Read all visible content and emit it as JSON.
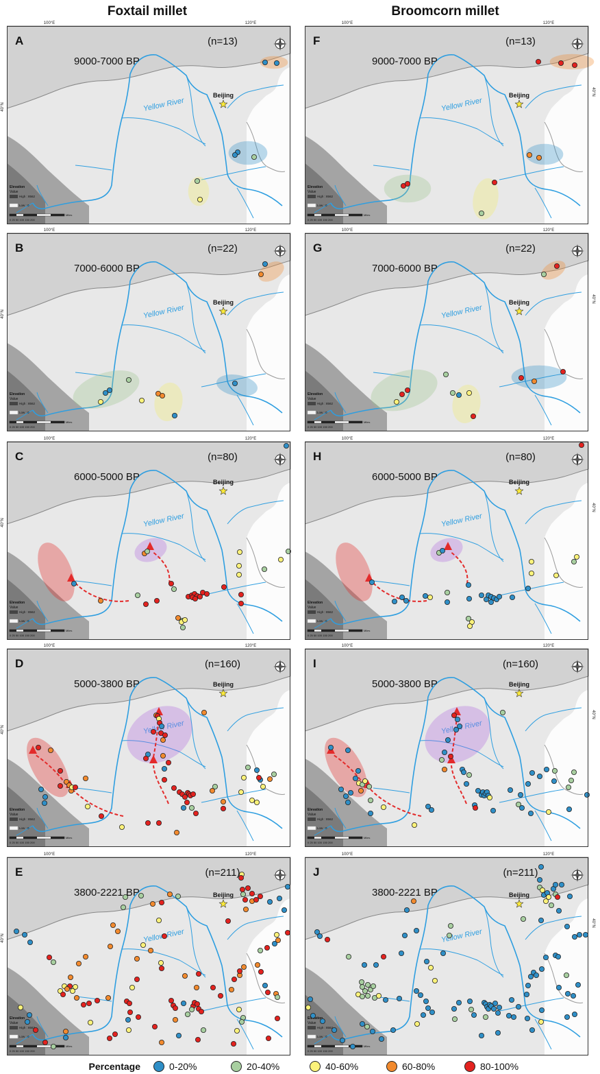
{
  "columns": [
    "Foxtail millet",
    "Broomcorn millet"
  ],
  "map_text": {
    "lon_100": "100°E",
    "lon_120": "120°E",
    "lat_40": "40°N",
    "beijing": "Beijing",
    "yellow_river": "Yellow River",
    "elevation_title": "Elevation",
    "elevation_value": "Value",
    "elevation_high": "High : 8562",
    "elevation_low": "Low : 0",
    "scale_ticks": "0  25 50   100   150   200",
    "scale_unit": "Miles"
  },
  "legend": {
    "title": "Percentage",
    "items": [
      {
        "label": "0-20%",
        "color": "#2f8fc7"
      },
      {
        "label": "20-40%",
        "color": "#a8cfa0"
      },
      {
        "label": "40-60%",
        "color": "#fbf27a"
      },
      {
        "label": "60-80%",
        "color": "#f28a2e"
      },
      {
        "label": "80-100%",
        "color": "#e3221f"
      }
    ]
  },
  "panels": [
    {
      "letter": "A",
      "period": "9000-7000 BP",
      "n": "(n=13)"
    },
    {
      "letter": "B",
      "period": "7000-6000 BP",
      "n": "(n=22)"
    },
    {
      "letter": "C",
      "period": "6000-5000 BP",
      "n": "(n=80)"
    },
    {
      "letter": "D",
      "period": "5000-3800 BP",
      "n": "(n=160)"
    },
    {
      "letter": "E",
      "period": "3800-2221 BP",
      "n": "(n=211)"
    },
    {
      "letter": "F",
      "period": "9000-7000 BP",
      "n": "(n=13)"
    },
    {
      "letter": "G",
      "period": "7000-6000 BP",
      "n": "(n=22)"
    },
    {
      "letter": "H",
      "period": "6000-5000 BP",
      "n": "(n=80)"
    },
    {
      "letter": "I",
      "period": "5000-3800 BP",
      "n": "(n=160)"
    },
    {
      "letter": "J",
      "period": "3800-2221 BP",
      "n": "(n=211)"
    }
  ]
}
